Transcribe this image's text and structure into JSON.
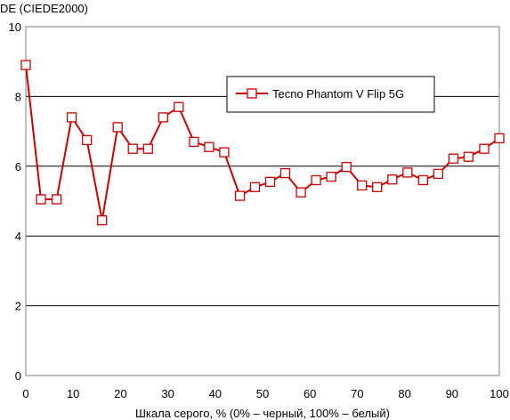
{
  "chart_data": {
    "type": "line",
    "title": "",
    "ylabel": "DE (CIEDE2000)",
    "xlabel": "Шкала серого, % (0% – черный, 100% – белый)",
    "xlim": [
      0,
      100
    ],
    "ylim": [
      0,
      10
    ],
    "xticks": [
      0,
      10,
      20,
      30,
      40,
      50,
      60,
      70,
      80,
      90,
      100
    ],
    "yticks": [
      0,
      2,
      4,
      6,
      8,
      10
    ],
    "grid": "horizontal",
    "legend_position": "top-right",
    "series": [
      {
        "name": "Tecno Phantom V Flip 5G",
        "color": "#cc0000",
        "x": [
          0,
          3.2,
          6.5,
          9.7,
          12.9,
          16.1,
          19.4,
          22.6,
          25.8,
          29,
          32.3,
          35.5,
          38.7,
          41.9,
          45.2,
          48.4,
          51.6,
          54.8,
          58.1,
          61.3,
          64.5,
          67.7,
          71,
          74.2,
          77.4,
          80.6,
          83.9,
          87.1,
          90.3,
          93.5,
          96.8,
          100
        ],
        "values": [
          8.9,
          5.05,
          5.05,
          7.4,
          6.75,
          4.45,
          7.12,
          6.5,
          6.5,
          7.4,
          7.7,
          6.7,
          6.55,
          6.4,
          5.15,
          5.4,
          5.55,
          5.8,
          5.25,
          5.6,
          5.7,
          5.98,
          5.45,
          5.4,
          5.62,
          5.82,
          5.6,
          5.78,
          6.22,
          6.27,
          6.5,
          6.8
        ]
      }
    ]
  }
}
